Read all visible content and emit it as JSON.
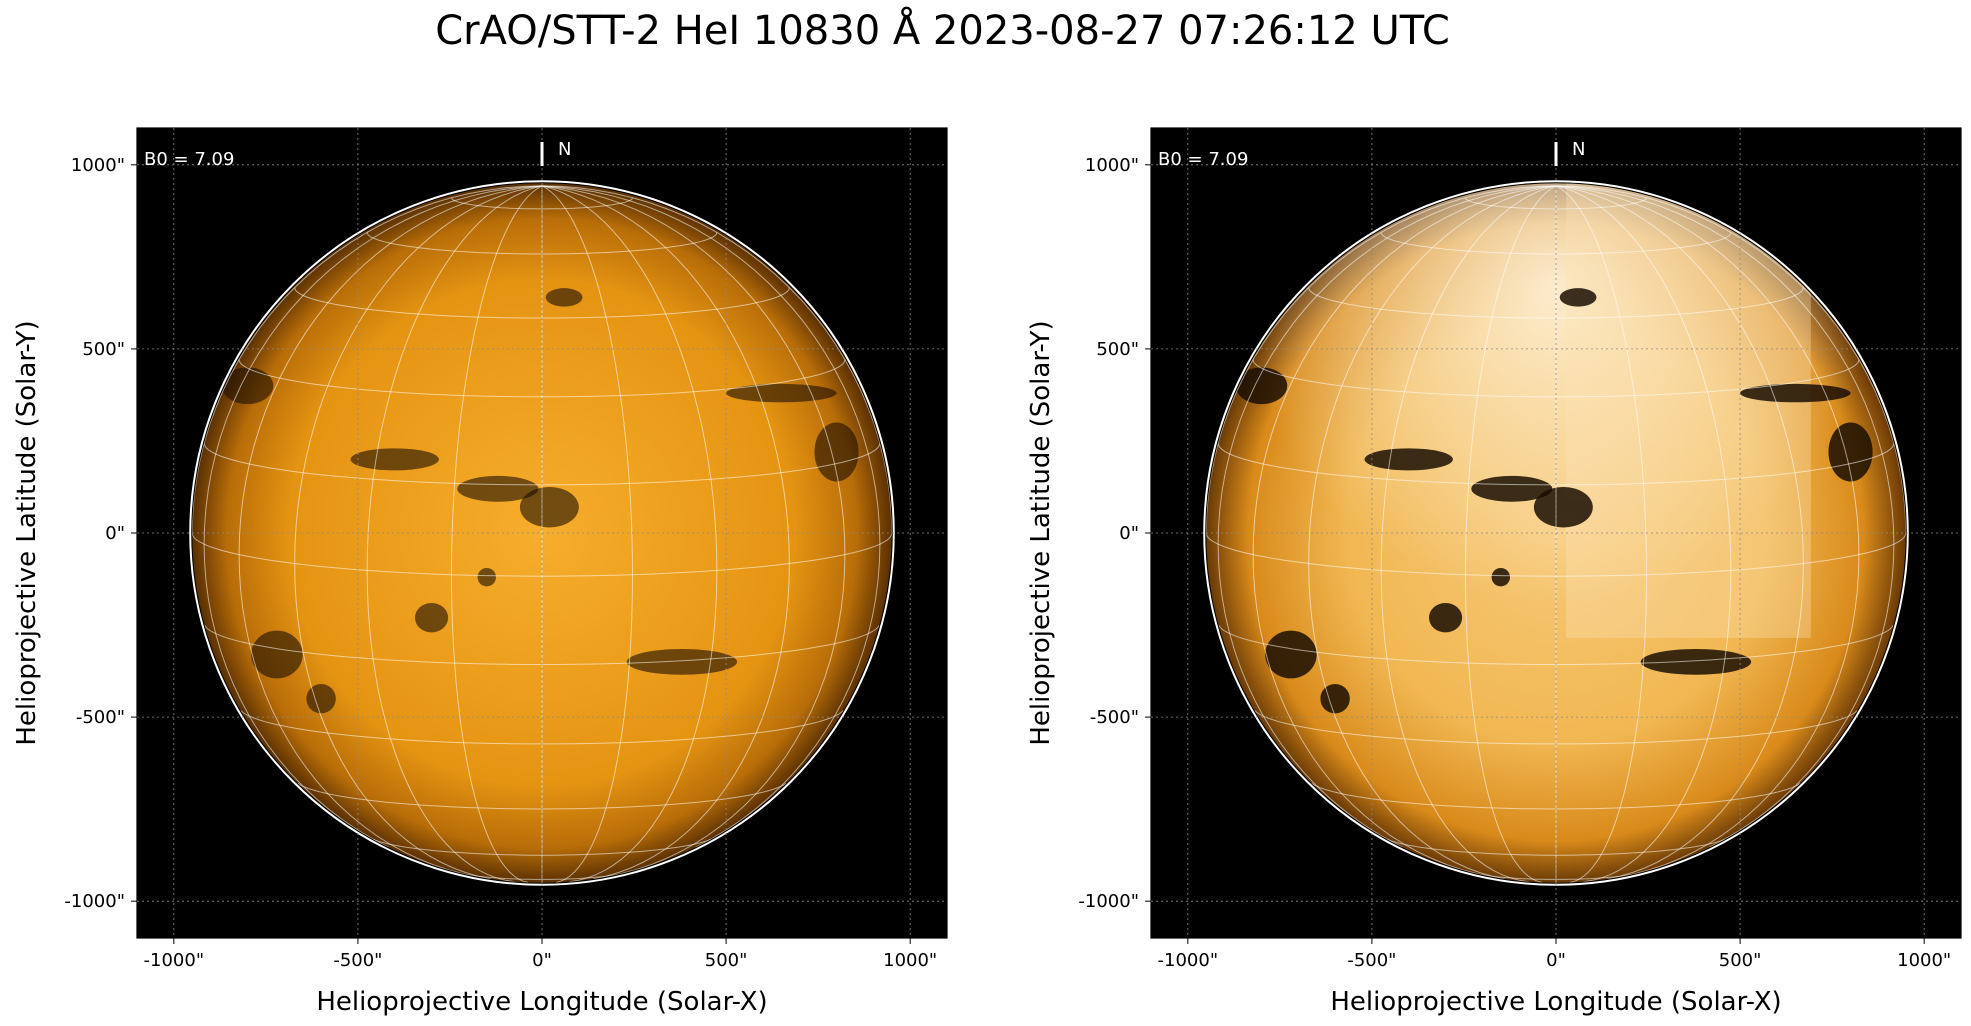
{
  "figure": {
    "title": "CrAO/STT-2 HeI 10830 Å 2023-08-27 07:26:12 UTC"
  },
  "panels": [
    {
      "id": "left",
      "b0_label": "B0 = 7.09",
      "north_label": "N",
      "xlabel": "Helioprojective Longitude (Solar-X)",
      "ylabel": "Helioprojective Latitude (Solar-Y)",
      "contrast": "normal"
    },
    {
      "id": "right",
      "b0_label": "B0 = 7.09",
      "north_label": "N",
      "xlabel": "Helioprojective Longitude (Solar-X)",
      "ylabel": "Helioprojective Latitude (Solar-Y)",
      "contrast": "enhanced"
    }
  ],
  "axes": {
    "x_ticks": [
      "-1000\"",
      "-500\"",
      "0\"",
      "500\"",
      "1000\""
    ],
    "y_ticks": [
      "1000\"",
      "500\"",
      "0\"",
      "-500\"",
      "-1000\""
    ],
    "x_tick_values": [
      -1000,
      -500,
      0,
      500,
      1000
    ],
    "y_tick_values": [
      1000,
      500,
      0,
      -500,
      -1000
    ],
    "xlim": [
      -1100,
      1100
    ],
    "ylim": [
      -1100,
      1100
    ],
    "solar_radius_arcsec": 950,
    "b0_deg": 7.09,
    "grid": true,
    "colormap": "sdo-aia-1600-like orange on black"
  }
}
